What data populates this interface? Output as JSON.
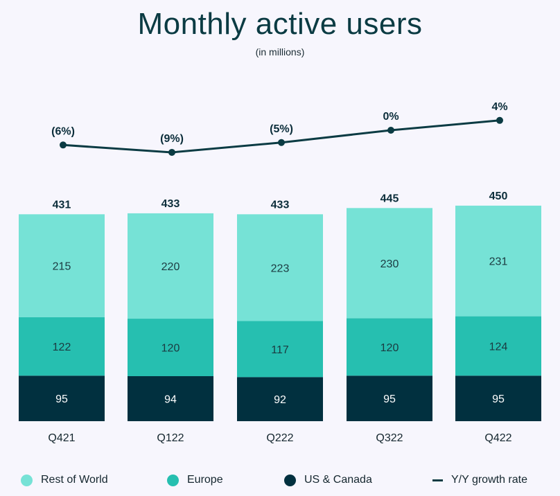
{
  "chart_data": {
    "type": "bar",
    "stacked": true,
    "title": "Monthly active users",
    "subtitle": "(in millions)",
    "categories": [
      "Q421",
      "Q122",
      "Q222",
      "Q322",
      "Q422"
    ],
    "series": [
      {
        "name": "US & Canada",
        "values": [
          95,
          94,
          92,
          95,
          95
        ],
        "color": "#01303f"
      },
      {
        "name": "Europe",
        "values": [
          122,
          120,
          117,
          120,
          124
        ],
        "color": "#26bfb0"
      },
      {
        "name": "Rest of World",
        "values": [
          215,
          220,
          223,
          230,
          231
        ],
        "color": "#76e2d6"
      }
    ],
    "totals": [
      "431",
      "433",
      "433",
      "445",
      "450"
    ],
    "line_series": {
      "name": "Y/Y growth rate",
      "values": [
        -6,
        -9,
        -5,
        0,
        4
      ],
      "labels": [
        "(6%)",
        "(9%)",
        "(5%)",
        "0%",
        "4%"
      ],
      "color": "#0b3b43"
    },
    "legend_order": [
      "Rest of World",
      "Europe",
      "US & Canada",
      "Y/Y growth rate"
    ],
    "legend_position": "bottom",
    "grid": false
  }
}
